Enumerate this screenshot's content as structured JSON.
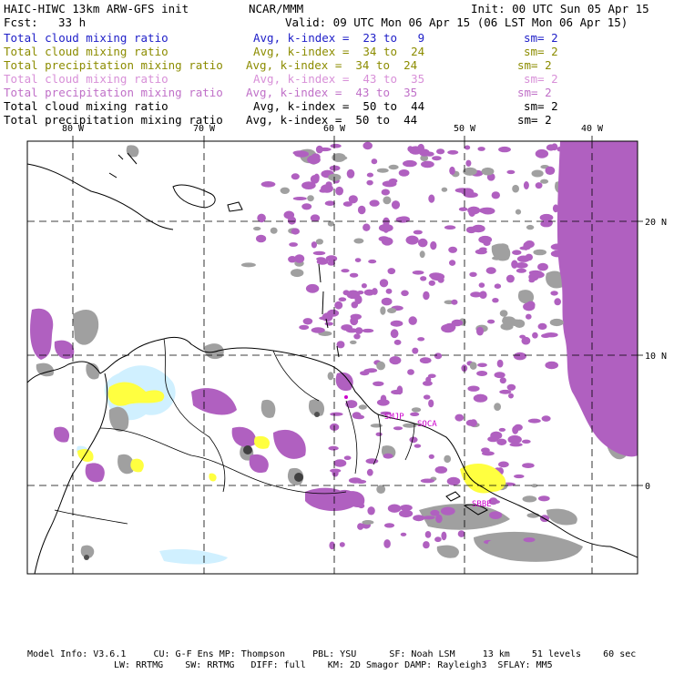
{
  "header": {
    "model": "HAIC-HIWC 13km ARW-GFS init",
    "org": "NCAR/MMM",
    "init": "Init: 00 UTC Sun 05 Apr 15",
    "fcst_label": "Fcst:",
    "fcst_value": "33 h",
    "valid": "Valid: 09 UTC Mon 06 Apr 15 (06 LST Mon 06 Apr 15)"
  },
  "legend": [
    {
      "field": "Total cloud mixing ratio",
      "avg": "Avg, k-index =  23 to   9",
      "sm": "sm= 2",
      "color": "#2020c8"
    },
    {
      "field": "Total cloud mixing ratio",
      "avg": "Avg, k-index =  34 to  24",
      "sm": "sm= 2",
      "color": "#8c8c00"
    },
    {
      "field": "Total precipitation mixing ratio",
      "avg": "Avg, k-index =  34 to  24",
      "sm": "sm= 2",
      "color": "#8c8c00"
    },
    {
      "field": "Total cloud mixing ratio",
      "avg": "Avg, k-index =  43 to  35",
      "sm": "sm= 2",
      "color": "#d890d8"
    },
    {
      "field": "Total precipitation mixing ratio",
      "avg": "Avg, k-index =  43 to  35",
      "sm": "sm= 2",
      "color": "#c070c8"
    },
    {
      "field": "Total cloud mixing ratio",
      "avg": "Avg, k-index =  50 to  44",
      "sm": "sm= 2",
      "color": "#000000"
    },
    {
      "field": "Total precipitation mixing ratio",
      "avg": "Avg, k-index =  50 to  44",
      "sm": "sm= 2",
      "color": "#000000"
    }
  ],
  "map": {
    "lon_labels": [
      "80 W",
      "70 W",
      "60 W",
      "50 W",
      "40 W"
    ],
    "lat_labels": [
      "20 N",
      "10 N",
      "0"
    ],
    "stations": [
      "SMJP",
      "SOCA",
      "SBBE"
    ],
    "colors": {
      "purple": "#b060c0",
      "gray": "#a0a0a0",
      "yellow": "#ffff40",
      "cyan": "#d0f0ff",
      "border": "#000000"
    }
  },
  "footer": {
    "line1": "Model Info: V3.6.1     CU: G-F Ens MP: Thompson     PBL: YSU      SF: Noah LSM     13 km    51 levels    60 sec",
    "line2": "LW: RRTMG    SW: RRTMG   DIFF: full    KM: 2D Smagor DAMP: Rayleigh3  SFLAY: MM5"
  }
}
